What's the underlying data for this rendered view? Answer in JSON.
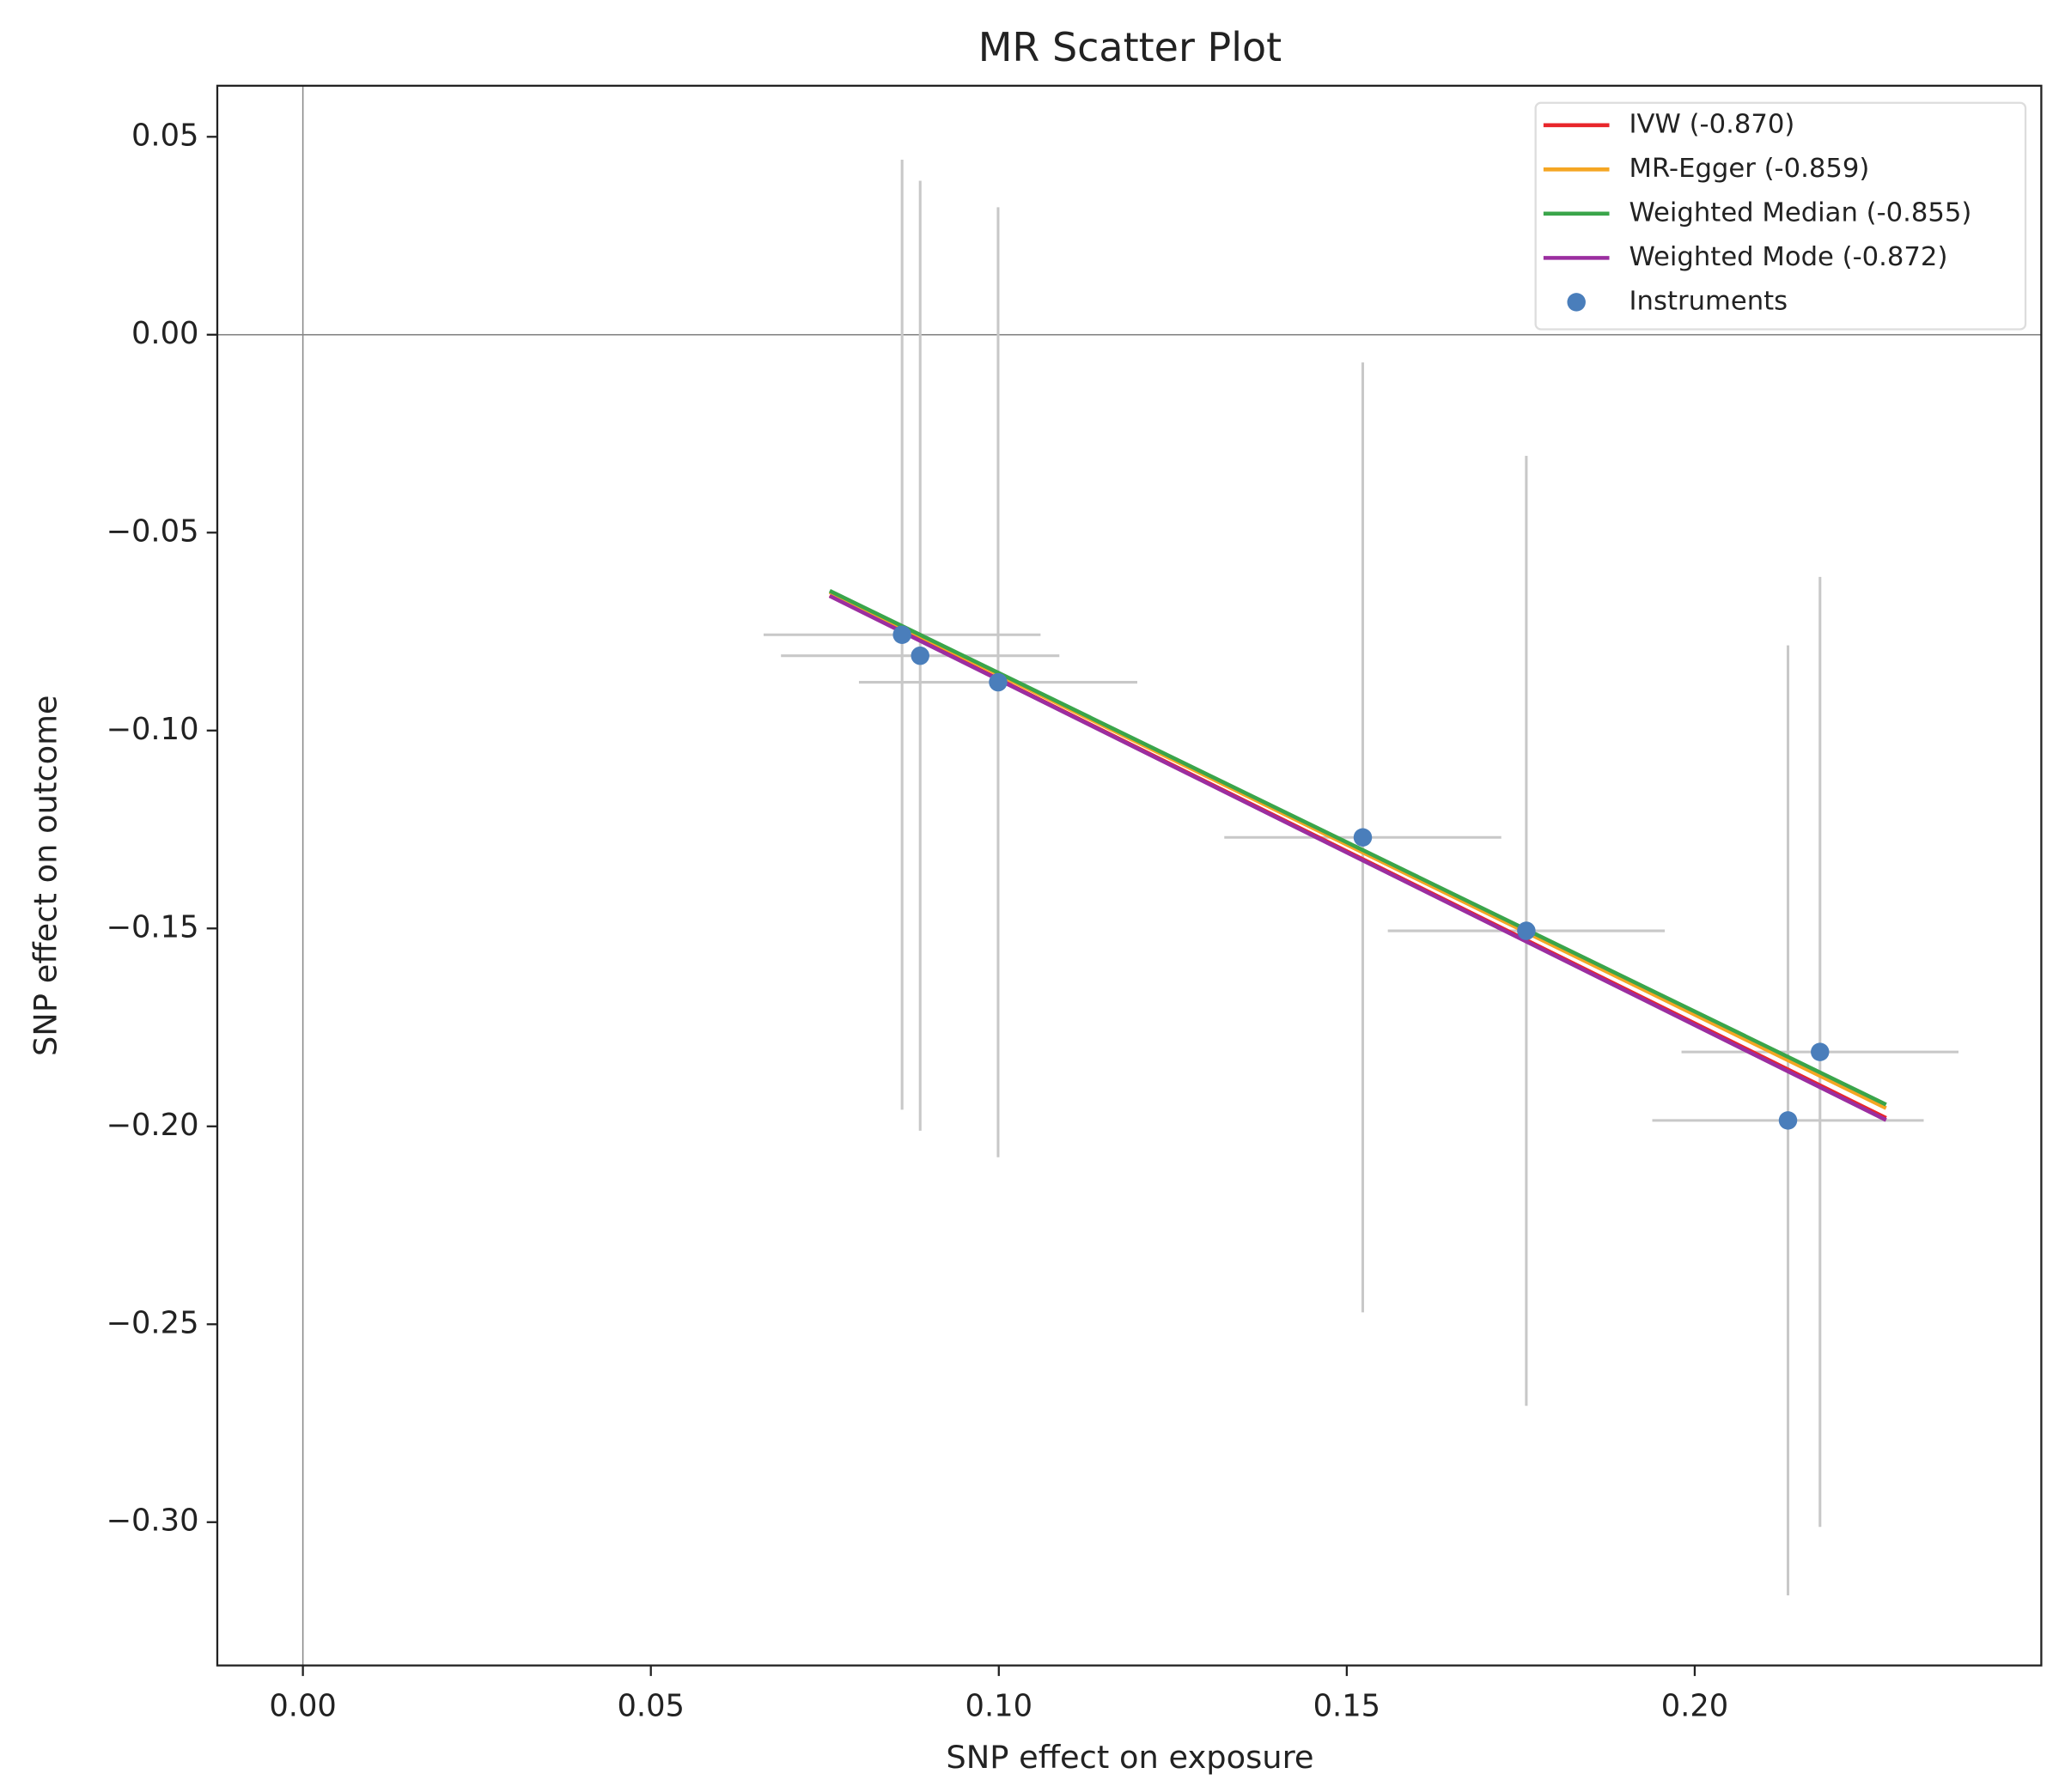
{
  "chart_data": {
    "type": "scatter",
    "title": "MR Scatter Plot",
    "xlabel": "SNP effect on exposure",
    "ylabel": "SNP effect on outcome",
    "xlim": [
      -0.0123,
      0.2498
    ],
    "ylim": [
      -0.3362,
      0.0629
    ],
    "xticks": [
      {
        "value": 0,
        "label": "0.00"
      },
      {
        "value": 0.05,
        "label": "0.05"
      },
      {
        "value": 0.1,
        "label": "0.10"
      },
      {
        "value": 0.15,
        "label": "0.15"
      },
      {
        "value": 0.2,
        "label": "0.20"
      }
    ],
    "yticks": [
      {
        "value": 0.05,
        "label": "0.05"
      },
      {
        "value": 0,
        "label": "0.00"
      },
      {
        "value": -0.05,
        "label": "−0.05"
      },
      {
        "value": -0.1,
        "label": "−0.10"
      },
      {
        "value": -0.15,
        "label": "−0.15"
      },
      {
        "value": -0.2,
        "label": "−0.20"
      },
      {
        "value": -0.25,
        "label": "−0.25"
      },
      {
        "value": -0.3,
        "label": "−0.30"
      }
    ],
    "reference_lines": {
      "x": 0,
      "y": 0
    },
    "legend": "upper right",
    "error_color": "#c8c8c8",
    "series": [
      {
        "name": "IVW (-0.870)",
        "kind": "line",
        "color": "#e8262b",
        "x": [
          0.0757,
          0.2275
        ],
        "y": [
          -0.0659,
          -0.1979
        ]
      },
      {
        "name": "MR-Egger (-0.859)",
        "kind": "line",
        "color": "#f5a623",
        "x": [
          0.0757,
          0.2275
        ],
        "y": [
          -0.065,
          -0.1954
        ]
      },
      {
        "name": "Weighted Median (-0.855)",
        "kind": "line",
        "color": "#3aa54a",
        "x": [
          0.0757,
          0.2275
        ],
        "y": [
          -0.0647,
          -0.1945
        ]
      },
      {
        "name": "Weighted Mode (-0.872)",
        "kind": "line",
        "color": "#9b2ea0",
        "x": [
          0.0757,
          0.2275
        ],
        "y": [
          -0.066,
          -0.1984
        ]
      },
      {
        "name": "Instruments",
        "kind": "points",
        "color": "#4a7ebb",
        "x": [
          0.0861,
          0.0887,
          0.0999,
          0.1523,
          0.1758,
          0.218,
          0.2134
        ],
        "y": [
          -0.0758,
          -0.0811,
          -0.0878,
          -0.127,
          -0.1506,
          -0.1812,
          -0.1985
        ],
        "xerr": [
          0.0199,
          0.02,
          0.02,
          0.0199,
          0.0199,
          0.0199,
          0.0195
        ],
        "yerr": [
          0.12,
          0.12,
          0.12,
          0.12,
          0.12,
          0.12,
          0.12
        ]
      }
    ]
  }
}
